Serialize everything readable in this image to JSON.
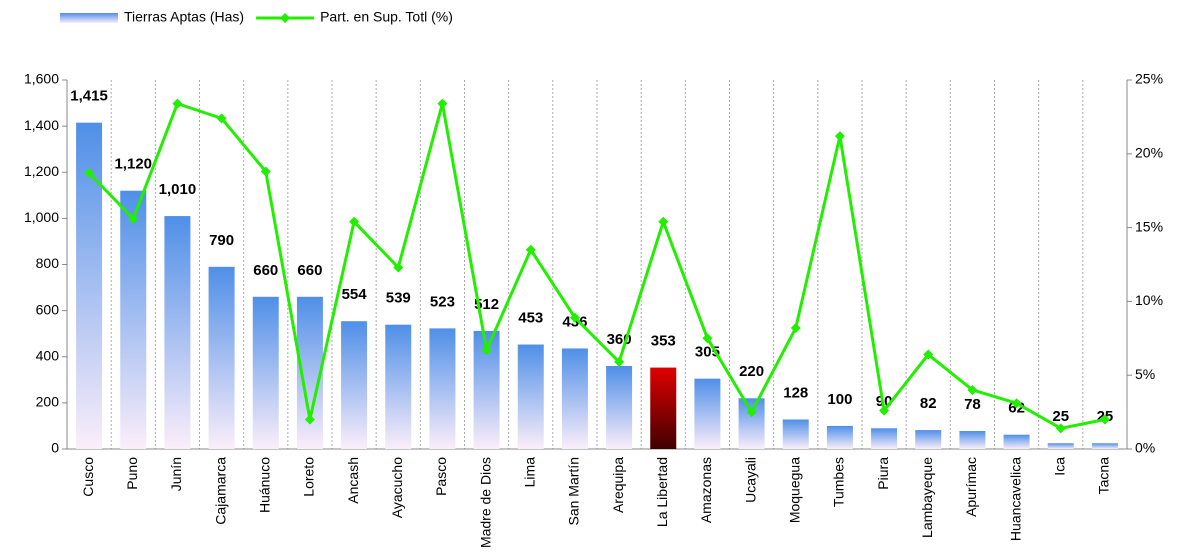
{
  "chart_data": {
    "type": "bar_line",
    "categories": [
      "Cusco",
      "Puno",
      "Junín",
      "Cajamarca",
      "Huánuco",
      "Loreto",
      "Ancash",
      "Ayacucho",
      "Pasco",
      "Madre de Dios",
      "Lima",
      "San Martín",
      "Arequipa",
      "La Libertad",
      "Amazonas",
      "Ucayali",
      "Moquegua",
      "Tumbes",
      "Piura",
      "Lambayeque",
      "Apurímac",
      "Huancavelica",
      "Ica",
      "Tacna"
    ],
    "series": [
      {
        "name": "Tierras Aptas (Has)",
        "type": "bar",
        "color": "#4f8fe8",
        "colors": [
          "#4f8fe8",
          "#4f8fe8",
          "#4f8fe8",
          "#4f8fe8",
          "#4f8fe8",
          "#4f8fe8",
          "#4f8fe8",
          "#4f8fe8",
          "#4f8fe8",
          "#4f8fe8",
          "#4f8fe8",
          "#4f8fe8",
          "#4f8fe8",
          "#e00000",
          "#4f8fe8",
          "#4f8fe8",
          "#4f8fe8",
          "#4f8fe8",
          "#4f8fe8",
          "#4f8fe8",
          "#4f8fe8",
          "#4f8fe8",
          "#4f8fe8",
          "#4f8fe8"
        ],
        "values": [
          1415,
          1120,
          1010,
          790,
          660,
          660,
          554,
          539,
          523,
          512,
          453,
          436,
          360,
          353,
          305,
          220,
          128,
          100,
          90,
          82,
          78,
          62,
          25,
          25
        ],
        "value_labels": [
          "1,415",
          "1,120",
          "1,010",
          "790",
          "660",
          "660",
          "554",
          "539",
          "523",
          "512",
          "453",
          "436",
          "360",
          "353",
          "305",
          "220",
          "128",
          "100",
          "90",
          "82",
          "78",
          "62",
          "25",
          "25"
        ]
      },
      {
        "name": "Part. en Sup. Totl (%)",
        "type": "line",
        "axis": "y2",
        "color": "#22ee00",
        "values": [
          18.7,
          15.6,
          23.4,
          22.4,
          18.8,
          2.0,
          15.4,
          12.3,
          23.4,
          6.7,
          13.5,
          8.9,
          5.9,
          15.4,
          7.5,
          2.5,
          8.2,
          21.2,
          2.6,
          6.4,
          4.0,
          3.1,
          1.4,
          2.0
        ]
      }
    ],
    "ylim": [
      0,
      1600
    ],
    "yticks": [
      0,
      200,
      400,
      600,
      800,
      {
        "value": 1000,
        "label": "1,000"
      },
      {
        "value": 1200,
        "label": "1,200"
      },
      {
        "value": 1400,
        "label": "1,400"
      },
      {
        "value": 1600,
        "label": "1,600"
      }
    ],
    "y2lim": [
      0,
      25
    ],
    "y2ticks": [
      {
        "value": 0,
        "label": "0%"
      },
      {
        "value": 5,
        "label": "5%"
      },
      {
        "value": 10,
        "label": "10%"
      },
      {
        "value": 15,
        "label": "15%"
      },
      {
        "value": 20,
        "label": "20%"
      },
      {
        "value": 25,
        "label": "25%"
      }
    ],
    "grid": "vertical-dashed",
    "legend": "top-left"
  }
}
